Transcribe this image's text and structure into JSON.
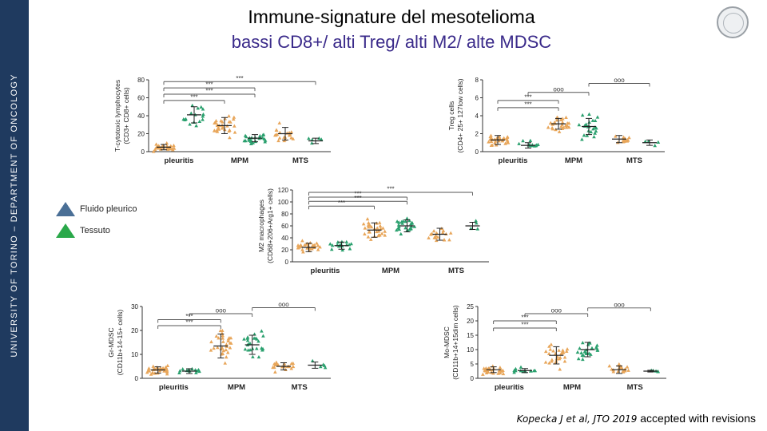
{
  "sidebar": {
    "label": "UNIVERSITY OF TORINO – DEPARTMENT OF ONCOLOGY"
  },
  "header": {
    "title": "Immune-signature del mesotelioma",
    "subtitle": "bassi CD8+/ alti Treg/ alti M2/ alte MDSC"
  },
  "legend": [
    {
      "label": "Fluido pleurico",
      "color": "#4a6f96"
    },
    {
      "label": "Tessuto",
      "color": "#2aa84a"
    }
  ],
  "colors": {
    "fluid_points": "#e8a65a",
    "tissue_points": "#2aa06e",
    "bracket": "#555555"
  },
  "citation": {
    "authors": "Kopecka J et al, JTO 2019",
    "note": "accepted with revisions"
  },
  "chart_data": [
    {
      "id": "cd8",
      "type": "scatter",
      "ylabel_line1": "T-cytotoxic lymphocytes",
      "ylabel_line2": "(CD3+ CD8+ cells)",
      "ylim": [
        0,
        80
      ],
      "yticks": [
        "0",
        "20",
        "40",
        "60",
        "80"
      ],
      "group_labels": [
        "pleuritis",
        "MPM",
        "MTS"
      ],
      "series": [
        {
          "group": 0,
          "kind": "fluid",
          "mean": 5,
          "sd": 3,
          "n": 30
        },
        {
          "group": 0,
          "kind": "tissue",
          "mean": 41,
          "sd": 9,
          "n": 16
        },
        {
          "group": 1,
          "kind": "fluid",
          "mean": 29,
          "sd": 9,
          "n": 30
        },
        {
          "group": 1,
          "kind": "tissue",
          "mean": 15,
          "sd": 4,
          "n": 24
        },
        {
          "group": 2,
          "kind": "fluid",
          "mean": 20,
          "sd": 7,
          "n": 20
        },
        {
          "group": 2,
          "kind": "tissue",
          "mean": 12,
          "sd": 3,
          "n": 5
        }
      ],
      "comparisons": [
        {
          "label": "***",
          "from": 0,
          "to": 5,
          "y": 78
        },
        {
          "label": "***",
          "from": 0,
          "to": 3,
          "y": 71
        },
        {
          "label": "***",
          "from": 0,
          "to": 3,
          "y": 64
        },
        {
          "label": "***",
          "from": 0,
          "to": 2,
          "y": 57
        }
      ]
    },
    {
      "id": "treg",
      "type": "scatter",
      "ylabel_line1": "Treg cells",
      "ylabel_line2": "(CD4+ 25+ 127low cells)",
      "ylim": [
        0,
        8
      ],
      "yticks": [
        "0",
        "2",
        "4",
        "6",
        "8"
      ],
      "group_labels": [
        "pleuritis",
        "MPM",
        "MTS"
      ],
      "series": [
        {
          "group": 0,
          "kind": "fluid",
          "mean": 1.3,
          "sd": 0.5,
          "n": 30
        },
        {
          "group": 0,
          "kind": "tissue",
          "mean": 0.7,
          "sd": 0.3,
          "n": 12
        },
        {
          "group": 1,
          "kind": "fluid",
          "mean": 3.1,
          "sd": 0.6,
          "n": 28
        },
        {
          "group": 1,
          "kind": "tissue",
          "mean": 2.8,
          "sd": 0.9,
          "n": 24
        },
        {
          "group": 2,
          "kind": "fluid",
          "mean": 1.4,
          "sd": 0.4,
          "n": 14
        },
        {
          "group": 2,
          "kind": "tissue",
          "mean": 1.0,
          "sd": 0.3,
          "n": 4
        }
      ],
      "comparisons": [
        {
          "label": "ooo",
          "from": 3,
          "to": 5,
          "y": 7.6
        },
        {
          "label": "ooo",
          "from": 1,
          "to": 3,
          "y": 6.6
        },
        {
          "label": "***",
          "from": 0,
          "to": 2,
          "y": 5.7
        },
        {
          "label": "***",
          "from": 0,
          "to": 2,
          "y": 4.9
        }
      ]
    },
    {
      "id": "m2",
      "type": "scatter",
      "ylabel_line1": "M2 macrophages",
      "ylabel_line2": "(CD68+206+Arg1+ cells)",
      "ylim": [
        0,
        120
      ],
      "yticks": [
        "0",
        "20",
        "40",
        "60",
        "80",
        "100",
        "120"
      ],
      "group_labels": [
        "pleuritis",
        "MPM",
        "MTS"
      ],
      "series": [
        {
          "group": 0,
          "kind": "fluid",
          "mean": 24,
          "sd": 7,
          "n": 30
        },
        {
          "group": 0,
          "kind": "tissue",
          "mean": 27,
          "sd": 6,
          "n": 16
        },
        {
          "group": 1,
          "kind": "fluid",
          "mean": 53,
          "sd": 12,
          "n": 30
        },
        {
          "group": 1,
          "kind": "tissue",
          "mean": 60,
          "sd": 10,
          "n": 24
        },
        {
          "group": 2,
          "kind": "fluid",
          "mean": 46,
          "sd": 10,
          "n": 18
        },
        {
          "group": 2,
          "kind": "tissue",
          "mean": 60,
          "sd": 6,
          "n": 4
        }
      ],
      "comparisons": [
        {
          "label": "***",
          "from": 0,
          "to": 5,
          "y": 116
        },
        {
          "label": "***",
          "from": 0,
          "to": 3,
          "y": 108
        },
        {
          "label": "***",
          "from": 0,
          "to": 3,
          "y": 101
        },
        {
          "label": "***",
          "from": 0,
          "to": 2,
          "y": 93
        }
      ]
    },
    {
      "id": "grmdsc",
      "type": "scatter",
      "ylabel_line1": "Gr-MDSC",
      "ylabel_line2": "(CD11b+14-15+ cells)",
      "ylim": [
        0,
        30
      ],
      "yticks": [
        "0",
        "10",
        "20",
        "30"
      ],
      "group_labels": [
        "pleuritis",
        "MPM",
        "MTS"
      ],
      "series": [
        {
          "group": 0,
          "kind": "fluid",
          "mean": 3.5,
          "sd": 1.3,
          "n": 30
        },
        {
          "group": 0,
          "kind": "tissue",
          "mean": 3.0,
          "sd": 1.0,
          "n": 12
        },
        {
          "group": 1,
          "kind": "fluid",
          "mean": 13.5,
          "sd": 5,
          "n": 30
        },
        {
          "group": 1,
          "kind": "tissue",
          "mean": 14,
          "sd": 4,
          "n": 24
        },
        {
          "group": 2,
          "kind": "fluid",
          "mean": 5,
          "sd": 1.5,
          "n": 18
        },
        {
          "group": 2,
          "kind": "tissue",
          "mean": 5.5,
          "sd": 1.3,
          "n": 5
        }
      ],
      "comparisons": [
        {
          "label": "ooo",
          "from": 3,
          "to": 5,
          "y": 29.5
        },
        {
          "label": "ooo",
          "from": 1,
          "to": 3,
          "y": 27
        },
        {
          "label": "***",
          "from": 0,
          "to": 2,
          "y": 24.5
        },
        {
          "label": "***",
          "from": 0,
          "to": 2,
          "y": 22
        }
      ]
    },
    {
      "id": "momdsc",
      "type": "scatter",
      "ylabel_line1": "Mo-MDSC",
      "ylabel_line2": "(CD11b+14+15dim cells)",
      "ylim": [
        0,
        25
      ],
      "yticks": [
        "0",
        "5",
        "10",
        "15",
        "20",
        "25"
      ],
      "group_labels": [
        "pleuritis",
        "MPM",
        "MTS"
      ],
      "series": [
        {
          "group": 0,
          "kind": "fluid",
          "mean": 3,
          "sd": 1,
          "n": 30
        },
        {
          "group": 0,
          "kind": "tissue",
          "mean": 2.7,
          "sd": 0.7,
          "n": 16
        },
        {
          "group": 1,
          "kind": "fluid",
          "mean": 8,
          "sd": 3,
          "n": 30
        },
        {
          "group": 1,
          "kind": "tissue",
          "mean": 10,
          "sd": 2.5,
          "n": 24
        },
        {
          "group": 2,
          "kind": "fluid",
          "mean": 3,
          "sd": 1.3,
          "n": 18
        },
        {
          "group": 2,
          "kind": "tissue",
          "mean": 2.5,
          "sd": 0.3,
          "n": 5
        }
      ],
      "comparisons": [
        {
          "label": "ooo",
          "from": 3,
          "to": 5,
          "y": 24.5
        },
        {
          "label": "ooo",
          "from": 1,
          "to": 3,
          "y": 22.5
        },
        {
          "label": "***",
          "from": 0,
          "to": 2,
          "y": 20
        },
        {
          "label": "***",
          "from": 0,
          "to": 2,
          "y": 17.5
        }
      ]
    }
  ]
}
